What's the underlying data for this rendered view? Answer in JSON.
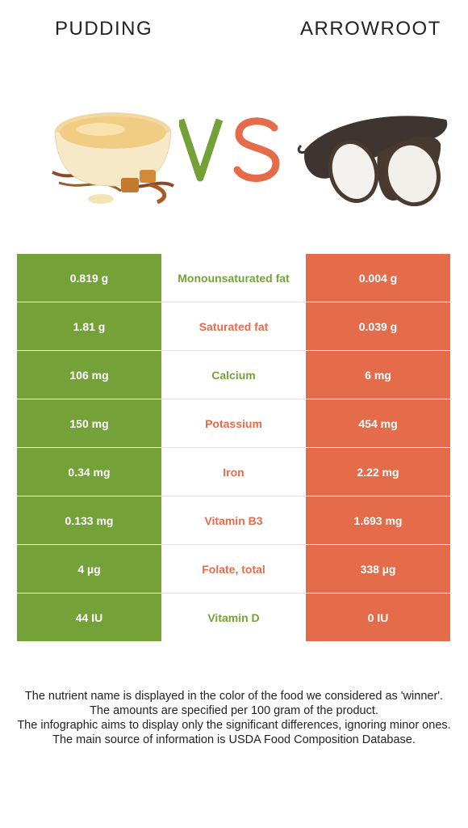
{
  "header": {
    "left_food": "PUDDING",
    "right_food": "ARROWROOT",
    "vs_label": "VS"
  },
  "colors": {
    "winner_left": "#74a239",
    "winner_right": "#e46c4a"
  },
  "rows": [
    {
      "left": "0.819 g",
      "nutrient": "Monounsaturated fat",
      "right": "0.004 g",
      "winner": "left"
    },
    {
      "left": "1.81 g",
      "nutrient": "Saturated fat",
      "right": "0.039 g",
      "winner": "right"
    },
    {
      "left": "106 mg",
      "nutrient": "Calcium",
      "right": "6 mg",
      "winner": "left"
    },
    {
      "left": "150 mg",
      "nutrient": "Potassium",
      "right": "454 mg",
      "winner": "right"
    },
    {
      "left": "0.34 mg",
      "nutrient": "Iron",
      "right": "2.22 mg",
      "winner": "right"
    },
    {
      "left": "0.133 mg",
      "nutrient": "Vitamin B3",
      "right": "1.693 mg",
      "winner": "right"
    },
    {
      "left": "4 µg",
      "nutrient": "Folate, total",
      "right": "338 µg",
      "winner": "right"
    },
    {
      "left": "44 IU",
      "nutrient": "Vitamin D",
      "right": "0 IU",
      "winner": "left"
    }
  ],
  "footer": {
    "line1": "The nutrient name is displayed in the color of the food we considered as 'winner'.",
    "line2": "The amounts are specified per 100 gram of the product.",
    "line3": "The infographic aims to display only the significant differences, ignoring minor ones.",
    "line4": "The main source of information is USDA Food Composition Database."
  }
}
